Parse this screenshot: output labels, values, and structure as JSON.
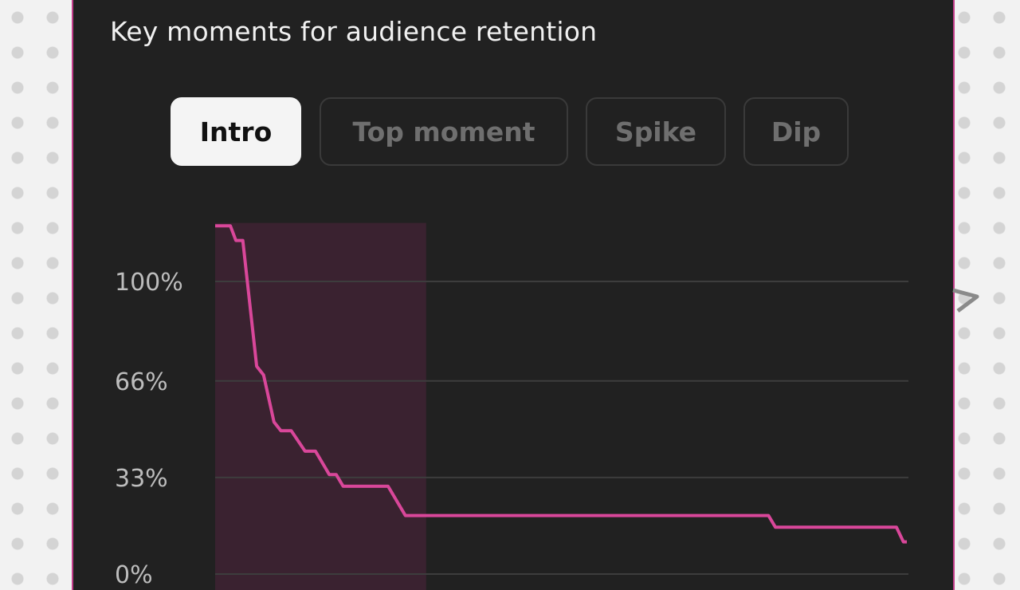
{
  "panel": {
    "title": "Key moments for audience retention",
    "tabs": [
      {
        "label": "Intro",
        "active": true
      },
      {
        "label": "Top moment",
        "active": false
      },
      {
        "label": "Spike",
        "active": false
      },
      {
        "label": "Dip",
        "active": false
      }
    ]
  },
  "colors": {
    "accent": "#c23d8b",
    "line": "#d9479a",
    "highlight": "#3a2230",
    "panel": "#212121"
  },
  "chart_data": {
    "type": "line",
    "title": "",
    "xlabel": "",
    "ylabel": "",
    "y_tick_labels": [
      "100%",
      "66%",
      "33%",
      "0%"
    ],
    "y_ticks": [
      100,
      66,
      33,
      0
    ],
    "ylim": [
      0,
      120
    ],
    "x_range": [
      0,
      100
    ],
    "highlight_region": {
      "label": "Intro",
      "x_start": 0,
      "x_end": 30.5
    },
    "grid": true,
    "series": [
      {
        "values_xy": [
          [
            0,
            119
          ],
          [
            2.2,
            119
          ],
          [
            3.0,
            114
          ],
          [
            4.0,
            114
          ],
          [
            6.0,
            71
          ],
          [
            7.0,
            68
          ],
          [
            8.5,
            52
          ],
          [
            9.5,
            49
          ],
          [
            11.0,
            49
          ],
          [
            13.0,
            42
          ],
          [
            14.5,
            42
          ],
          [
            16.0,
            36
          ],
          [
            16.5,
            34
          ],
          [
            17.5,
            34
          ],
          [
            18.5,
            30
          ],
          [
            25.0,
            30
          ],
          [
            27.5,
            20
          ],
          [
            80.0,
            20
          ],
          [
            81.0,
            16
          ],
          [
            98.5,
            16
          ],
          [
            99.5,
            11
          ],
          [
            100,
            11
          ]
        ]
      }
    ]
  }
}
